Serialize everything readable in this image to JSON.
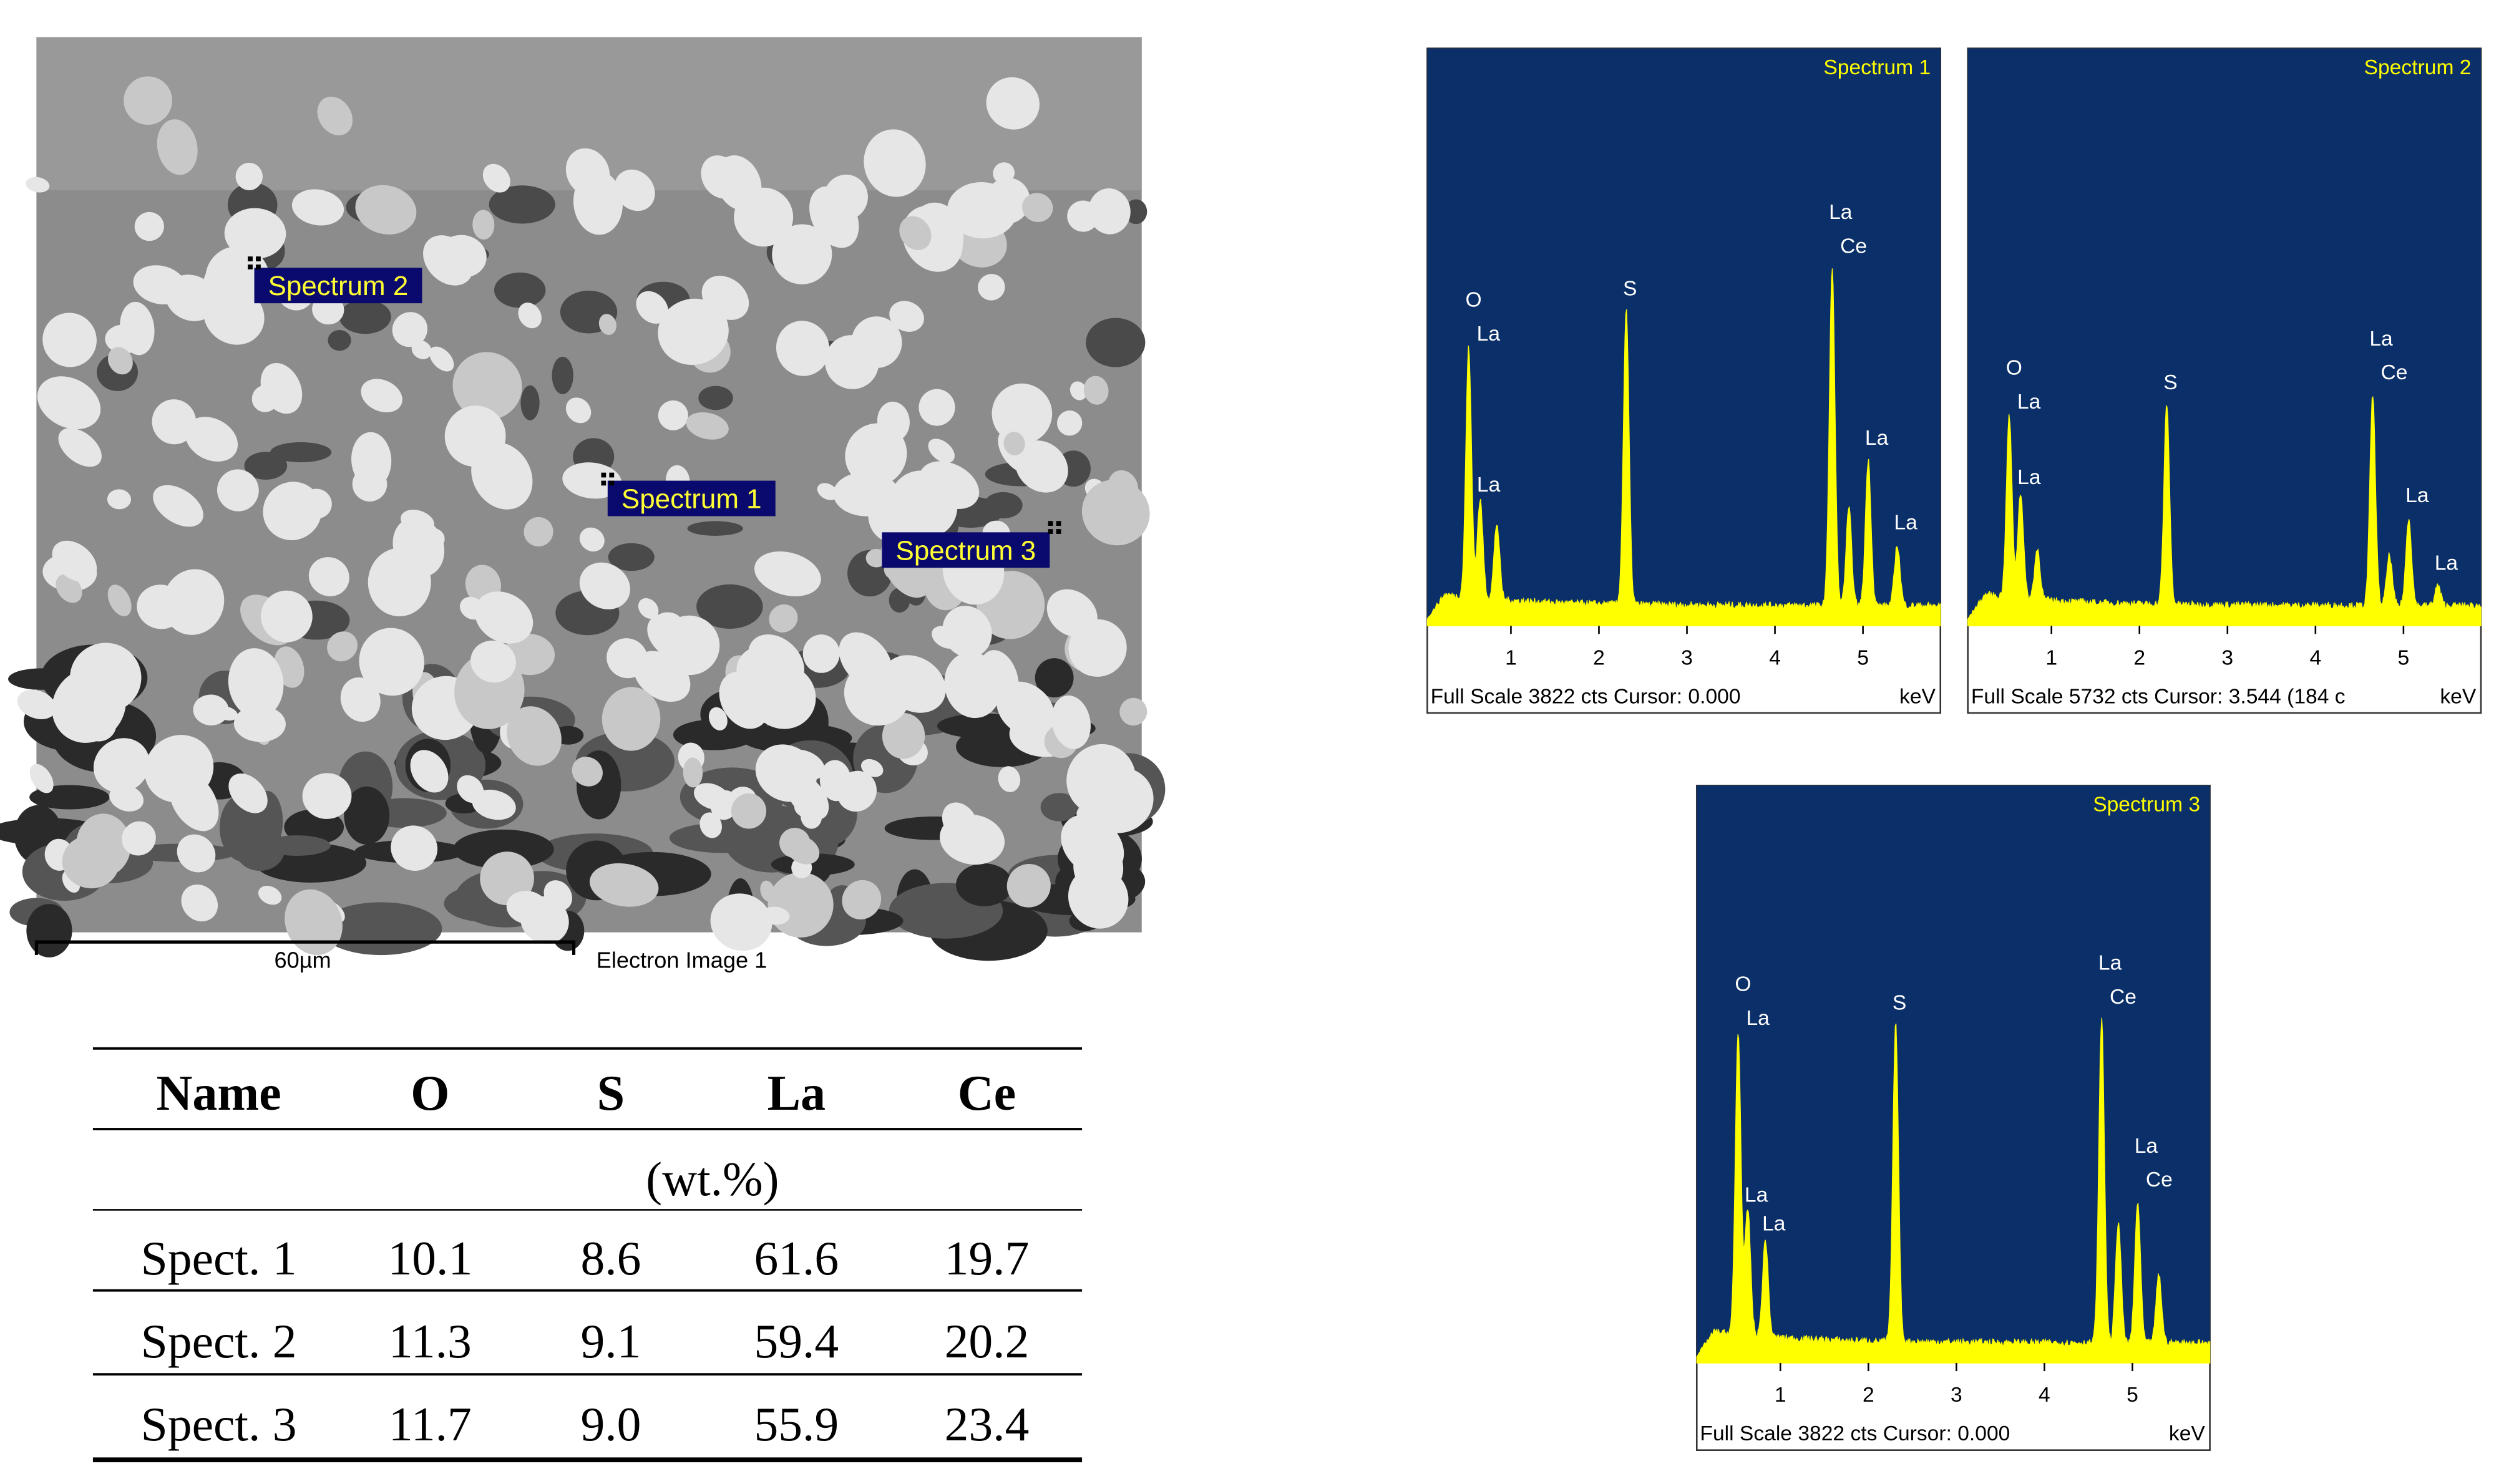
{
  "sem_image": {
    "spectrum_labels": [
      "Spectrum 1",
      "Spectrum 2",
      "Spectrum 3"
    ],
    "scale_bar": "60µm",
    "caption": "Electron Image 1"
  },
  "table": {
    "header": [
      "Name",
      "O",
      "S",
      "La",
      "Ce"
    ],
    "unit": "(wt.%)",
    "rows": [
      [
        "Spect. 1",
        "10.1",
        "8.6",
        "61.6",
        "19.7"
      ],
      [
        "Spect. 2",
        "11.3",
        "9.1",
        "59.4",
        "20.2"
      ],
      [
        "Spect. 3",
        "11.7",
        "9.0",
        "55.9",
        "23.4"
      ]
    ]
  },
  "spectra": [
    {
      "type": "spectrum",
      "title": "Spectrum 1",
      "footer": "Full Scale 3822 cts Cursor: 0.000",
      "unit": "keV",
      "xlim": [
        0.05,
        5.88
      ],
      "xticks": [
        1,
        2,
        3,
        4,
        5
      ],
      "ylim": [
        0,
        3822
      ],
      "color": "#ffff00",
      "peaks": [
        {
          "labels": [
            "O",
            "La"
          ],
          "energy": 0.52,
          "counts": 1650
        },
        {
          "labels": [
            "La"
          ],
          "energy": 0.65,
          "counts": 650
        },
        {
          "energy": 0.84,
          "counts": 500
        },
        {
          "labels": [
            "S"
          ],
          "energy": 2.31,
          "counts": 1950
        },
        {
          "labels": [
            "La",
            "Ce"
          ],
          "energy": 4.65,
          "counts": 2230
        },
        {
          "energy": 4.84,
          "counts": 640
        },
        {
          "labels": [
            "La"
          ],
          "energy": 5.06,
          "counts": 960
        },
        {
          "labels": [
            "La"
          ],
          "energy": 5.39,
          "counts": 400
        }
      ]
    },
    {
      "type": "spectrum",
      "title": "Spectrum 2",
      "footer": "Full Scale 5732 cts Cursor: 3.544  (184 c",
      "unit": "keV",
      "xlim": [
        0.05,
        5.88
      ],
      "xticks": [
        1,
        2,
        3,
        4,
        5
      ],
      "ylim": [
        0,
        5732
      ],
      "color": "#ffff00",
      "peaks": [
        {
          "labels": [
            "O",
            "La"
          ],
          "energy": 0.52,
          "counts": 1800
        },
        {
          "labels": [
            "La"
          ],
          "energy": 0.65,
          "counts": 1050
        },
        {
          "energy": 0.84,
          "counts": 500
        },
        {
          "labels": [
            "S"
          ],
          "energy": 2.31,
          "counts": 1990
        },
        {
          "labels": [
            "La",
            "Ce"
          ],
          "energy": 4.65,
          "counts": 2090
        },
        {
          "energy": 4.84,
          "counts": 500
        },
        {
          "labels": [
            "La"
          ],
          "energy": 5.06,
          "counts": 870
        },
        {
          "labels": [
            "La"
          ],
          "energy": 5.39,
          "counts": 200
        }
      ]
    },
    {
      "type": "spectrum",
      "title": "Spectrum 3",
      "footer": "Full Scale 3822 cts Cursor: 0.000",
      "unit": "keV",
      "xlim": [
        0.05,
        5.88
      ],
      "xticks": [
        1,
        2,
        3,
        4,
        5
      ],
      "ylim": [
        0,
        3822
      ],
      "color": "#ffff00",
      "peaks": [
        {
          "labels": [
            "O",
            "La"
          ],
          "energy": 0.52,
          "counts": 2000
        },
        {
          "labels": [
            "La"
          ],
          "energy": 0.63,
          "counts": 830
        },
        {
          "labels": [
            "La"
          ],
          "energy": 0.83,
          "counts": 640
        },
        {
          "labels": [
            "S"
          ],
          "energy": 2.31,
          "counts": 2100
        },
        {
          "labels": [
            "La",
            "Ce"
          ],
          "energy": 4.65,
          "counts": 2140
        },
        {
          "energy": 4.84,
          "counts": 800
        },
        {
          "labels": [
            "La",
            "Ce"
          ],
          "energy": 5.06,
          "counts": 930
        },
        {
          "energy": 5.3,
          "counts": 450
        }
      ]
    }
  ]
}
